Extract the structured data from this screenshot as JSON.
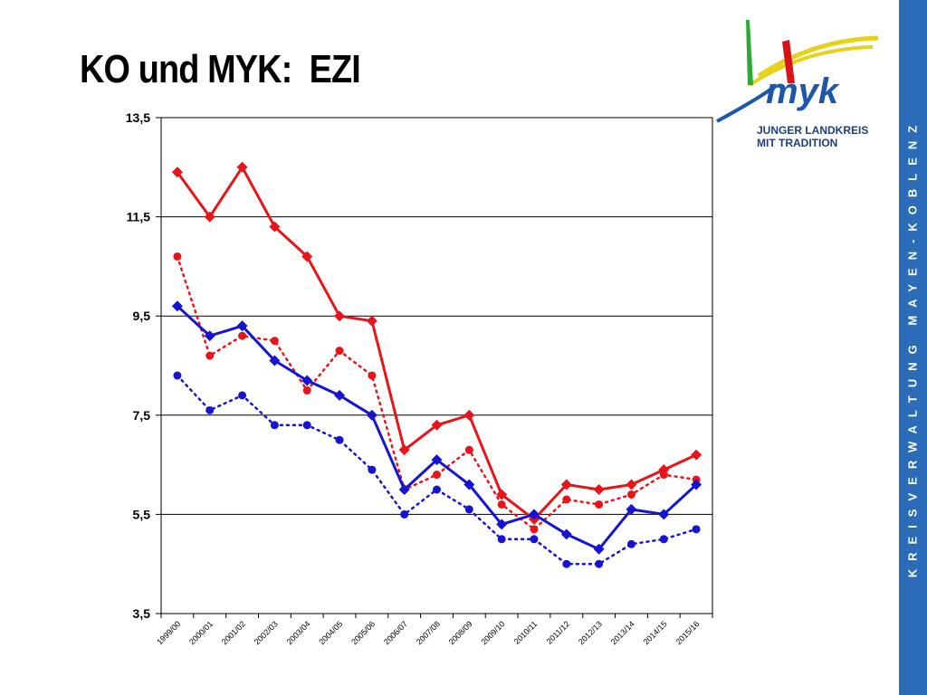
{
  "slide": {
    "title": "KO und MYK:  EZI",
    "side_text": "KREISVERWALTUNG MAYEN-KOBLENZ",
    "logo": {
      "line1": "JUNGER LANDKREIS",
      "line2": "MIT TRADITION",
      "mark": "myk"
    }
  },
  "colors": {
    "red": "#e8141a",
    "blue": "#1414d2",
    "band": "#2b6cb8"
  },
  "chart_data": {
    "type": "line",
    "title": "",
    "xlabel": "",
    "ylabel": "",
    "categories": [
      "1999/00",
      "2000/01",
      "2001/02",
      "2002/03",
      "2003/04",
      "2004/05",
      "2005/06",
      "2006/07",
      "2007/08",
      "2008/09",
      "2009/10",
      "2010/11",
      "2011/12",
      "2012/13",
      "2013/14",
      "2014/15",
      "2015/16"
    ],
    "yticks": [
      "13,5",
      "11,5",
      "9,5",
      "7,5",
      "5,5",
      "3,5"
    ],
    "ylim": [
      3.5,
      13.5
    ],
    "grid": true,
    "series": [
      {
        "color": "#e8141a",
        "style": "solid",
        "marker": "diamond",
        "values": [
          12.4,
          11.5,
          12.5,
          11.3,
          10.7,
          9.5,
          9.4,
          6.8,
          7.3,
          7.5,
          5.9,
          5.4,
          6.1,
          6.0,
          6.1,
          6.4,
          6.7
        ]
      },
      {
        "color": "#e8141a",
        "style": "dotted",
        "marker": "circle",
        "values": [
          10.7,
          8.7,
          9.1,
          9.0,
          8.0,
          8.8,
          8.3,
          6.0,
          6.3,
          6.8,
          5.7,
          5.2,
          5.8,
          5.7,
          5.9,
          6.3,
          6.2
        ]
      },
      {
        "color": "#1414d2",
        "style": "solid",
        "marker": "diamond",
        "values": [
          9.7,
          9.1,
          9.3,
          8.6,
          8.2,
          7.9,
          7.5,
          6.0,
          6.6,
          6.1,
          5.3,
          5.5,
          5.1,
          4.8,
          5.6,
          5.5,
          6.1
        ]
      },
      {
        "color": "#1414d2",
        "style": "dotted",
        "marker": "circle",
        "values": [
          8.3,
          7.6,
          7.9,
          7.3,
          7.3,
          7.0,
          6.4,
          5.5,
          6.0,
          5.6,
          5.0,
          5.0,
          4.5,
          4.5,
          4.9,
          5.0,
          5.2
        ]
      }
    ]
  }
}
